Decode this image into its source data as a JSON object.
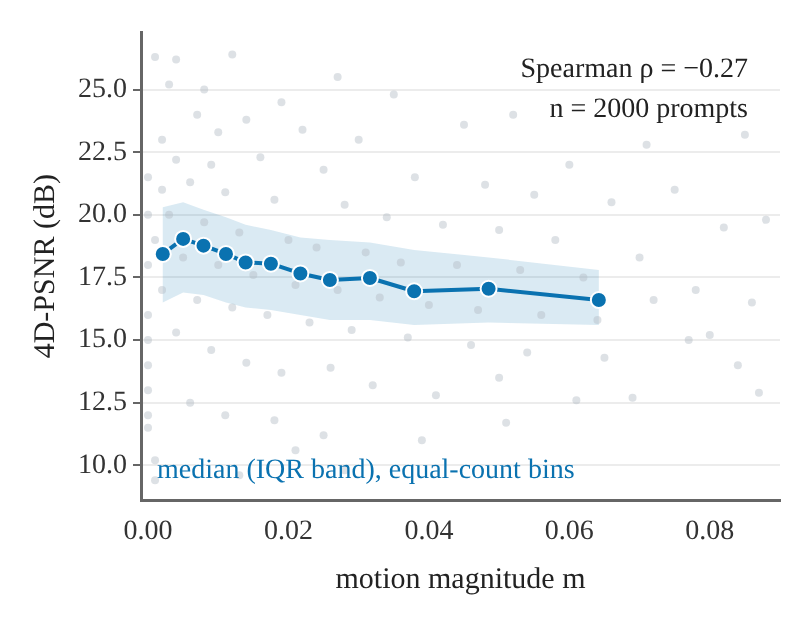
{
  "chart_data": {
    "type": "scatter",
    "xlabel": "motion magnitude m",
    "ylabel": "4D-PSNR (dB)",
    "annotations": [
      "Spearman ρ = −0.27",
      "n = 2000 prompts"
    ],
    "xlim": [
      -0.001,
      0.09
    ],
    "ylim": [
      8.6,
      27.3
    ],
    "xticks": [
      {
        "value": 0,
        "label": "0.00"
      },
      {
        "value": 0.02,
        "label": "0.02"
      },
      {
        "value": 0.04,
        "label": "0.04"
      },
      {
        "value": 0.06,
        "label": "0.06"
      },
      {
        "value": 0.08,
        "label": "0.08"
      }
    ],
    "yticks": [
      {
        "value": 10,
        "label": "10.0"
      },
      {
        "value": 12.5,
        "label": "12.5"
      },
      {
        "value": 15,
        "label": "15.0"
      },
      {
        "value": 17.5,
        "label": "17.5"
      },
      {
        "value": 20,
        "label": "20.0"
      },
      {
        "value": 22.5,
        "label": "22.5"
      },
      {
        "value": 25,
        "label": "25.0"
      }
    ],
    "grid": "y",
    "legend": false,
    "series": [
      {
        "color": "#b4bcc6",
        "marker": "circle",
        "x": [
          0.001,
          0.004,
          0.012,
          0.003,
          0.008,
          0.027,
          0.019,
          0.035,
          0.007,
          0.014,
          0.002,
          0.01,
          0.022,
          0.03,
          0.045,
          0.052,
          0.06,
          0.071,
          0.085,
          0.004,
          0.009,
          0.016,
          0.025,
          0.038,
          0.048,
          0.055,
          0.066,
          0.075,
          0.082,
          0.088,
          0.002,
          0.006,
          0.011,
          0.018,
          0.028,
          0.034,
          0.042,
          0.05,
          0.058,
          0.003,
          0.008,
          0.013,
          0.02,
          0.024,
          0.031,
          0.036,
          0.044,
          0.053,
          0.062,
          0.07,
          0.078,
          0.086,
          0.001,
          0.005,
          0.01,
          0.015,
          0.021,
          0.027,
          0.033,
          0.04,
          0.047,
          0.056,
          0.064,
          0.072,
          0.08,
          0.002,
          0.007,
          0.012,
          0.017,
          0.023,
          0.029,
          0.037,
          0.046,
          0.054,
          0.065,
          0.077,
          0.084,
          0.0,
          0.0,
          0.0,
          0.0,
          0.0,
          0.0,
          0.0,
          0.0,
          0.0,
          0.004,
          0.009,
          0.014,
          0.019,
          0.026,
          0.032,
          0.041,
          0.05,
          0.061,
          0.069,
          0.006,
          0.011,
          0.018,
          0.025,
          0.039,
          0.051,
          0.001,
          0.001,
          0.013,
          0.028,
          0.021,
          0.087
        ],
        "values": [
          26.3,
          26.2,
          26.4,
          25.2,
          25.0,
          25.5,
          24.5,
          24.8,
          24.0,
          23.8,
          23.0,
          23.3,
          23.4,
          23.0,
          23.6,
          24.0,
          22.0,
          22.8,
          23.2,
          22.2,
          22.0,
          22.3,
          21.8,
          21.5,
          21.2,
          20.8,
          20.5,
          21.0,
          19.5,
          19.8,
          21.0,
          21.3,
          20.9,
          20.6,
          20.4,
          19.9,
          19.6,
          19.4,
          19.0,
          20.0,
          19.7,
          19.3,
          19.0,
          18.7,
          18.5,
          18.1,
          18.0,
          17.8,
          17.5,
          18.3,
          17.0,
          16.5,
          19.0,
          18.3,
          18.0,
          17.6,
          17.2,
          17.0,
          16.7,
          16.4,
          16.2,
          16.0,
          15.8,
          16.6,
          15.2,
          17.0,
          16.6,
          16.3,
          16.0,
          15.7,
          15.4,
          15.1,
          14.8,
          14.5,
          14.3,
          15.0,
          14.0,
          16.0,
          15.0,
          14.0,
          13.0,
          12.0,
          11.5,
          18.0,
          20.0,
          21.5,
          15.3,
          14.6,
          14.1,
          13.7,
          13.9,
          13.2,
          12.8,
          13.5,
          12.6,
          12.7,
          12.5,
          12.0,
          11.8,
          11.2,
          11.0,
          11.7,
          10.2,
          9.4,
          9.6,
          9.8,
          10.6,
          12.9
        ]
      },
      {
        "type": "line",
        "name": "median (IQR band), equal-count bins",
        "color": "#0a72b0",
        "marker": "circle",
        "line_style": "solid",
        "x": [
          0.0021,
          0.005,
          0.0079,
          0.0111,
          0.0139,
          0.0175,
          0.0217,
          0.0259,
          0.0316,
          0.0379,
          0.0485,
          0.0642
        ],
        "values": [
          18.44,
          19.04,
          18.77,
          18.44,
          18.1,
          18.05,
          17.66,
          17.4,
          17.48,
          16.95,
          17.05,
          16.6
        ],
        "lower": [
          16.5,
          16.9,
          16.8,
          16.5,
          16.3,
          16.2,
          16.0,
          15.8,
          15.8,
          15.6,
          15.7,
          15.6
        ],
        "upper": [
          20.3,
          20.5,
          20.2,
          19.9,
          19.6,
          19.4,
          19.1,
          19.0,
          18.9,
          18.6,
          18.3,
          17.8
        ]
      }
    ]
  }
}
